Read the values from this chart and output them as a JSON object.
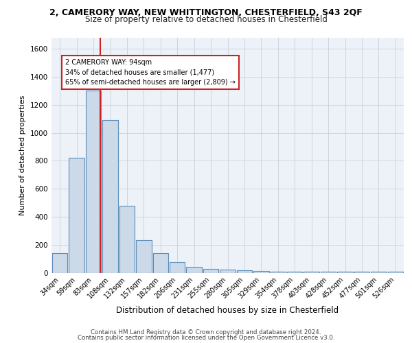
{
  "title_line1": "2, CAMERORY WAY, NEW WHITTINGTON, CHESTERFIELD, S43 2QF",
  "title_line2": "Size of property relative to detached houses in Chesterfield",
  "xlabel": "Distribution of detached houses by size in Chesterfield",
  "ylabel": "Number of detached properties",
  "bin_labels": [
    "34sqm",
    "59sqm",
    "83sqm",
    "108sqm",
    "132sqm",
    "157sqm",
    "182sqm",
    "206sqm",
    "231sqm",
    "255sqm",
    "280sqm",
    "305sqm",
    "329sqm",
    "354sqm",
    "378sqm",
    "403sqm",
    "428sqm",
    "452sqm",
    "477sqm",
    "501sqm",
    "526sqm"
  ],
  "bin_values": [
    140,
    820,
    1300,
    1090,
    480,
    235,
    140,
    75,
    42,
    25,
    22,
    15,
    10,
    8,
    8,
    8,
    5,
    5,
    5,
    5,
    5
  ],
  "bar_color": "#ccd9e8",
  "bar_edge_color": "#5b8db8",
  "vline_x": 2.42,
  "vline_color": "#cc2222",
  "annotation_title": "2 CAMERORY WAY: 94sqm",
  "annotation_line2": "34% of detached houses are smaller (1,477)",
  "annotation_line3": "65% of semi-detached houses are larger (2,809) →",
  "annotation_box_edge": "#cc2222",
  "ylim": [
    0,
    1680
  ],
  "yticks": [
    0,
    200,
    400,
    600,
    800,
    1000,
    1200,
    1400,
    1600
  ],
  "footer_line1": "Contains HM Land Registry data © Crown copyright and database right 2024.",
  "footer_line2": "Contains public sector information licensed under the Open Government Licence v3.0.",
  "bg_color": "#edf2f8",
  "grid_color": "#c8d0da",
  "title1_fontsize": 9.0,
  "title2_fontsize": 8.5,
  "ylabel_fontsize": 8.0,
  "xlabel_fontsize": 8.5,
  "tick_fontsize": 7.5,
  "ann_fontsize": 7.0,
  "footer_fontsize": 6.2
}
